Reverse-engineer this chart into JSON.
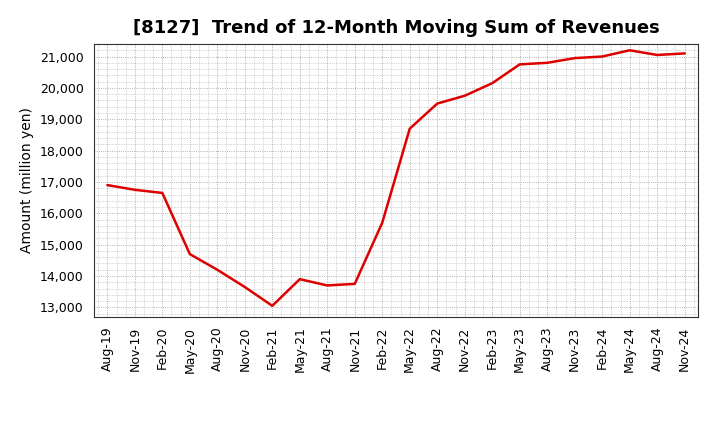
{
  "title": "[8127]  Trend of 12-Month Moving Sum of Revenues",
  "ylabel": "Amount (million yen)",
  "line_color": "#dd0000",
  "background_color": "#ffffff",
  "plot_bg_color": "#ffffff",
  "grid_color": "#999999",
  "x_labels": [
    "Aug-19",
    "Nov-19",
    "Feb-20",
    "May-20",
    "Aug-20",
    "Nov-20",
    "Feb-21",
    "May-21",
    "Aug-21",
    "Nov-21",
    "Feb-22",
    "May-22",
    "Aug-22",
    "Nov-22",
    "Feb-23",
    "May-23",
    "Aug-23",
    "Nov-23",
    "Feb-24",
    "May-24",
    "Aug-24",
    "Nov-24"
  ],
  "y_values": [
    16900,
    16750,
    16650,
    14700,
    14200,
    13650,
    13050,
    13900,
    13700,
    13750,
    15700,
    18700,
    19500,
    19750,
    20150,
    20750,
    20800,
    20950,
    21000,
    21200,
    21050,
    21100
  ],
  "yticks": [
    13000,
    14000,
    15000,
    16000,
    17000,
    18000,
    19000,
    20000,
    21000
  ],
  "ylim": [
    12700,
    21400
  ],
  "title_fontsize": 13,
  "axis_label_fontsize": 10,
  "tick_fontsize": 9
}
